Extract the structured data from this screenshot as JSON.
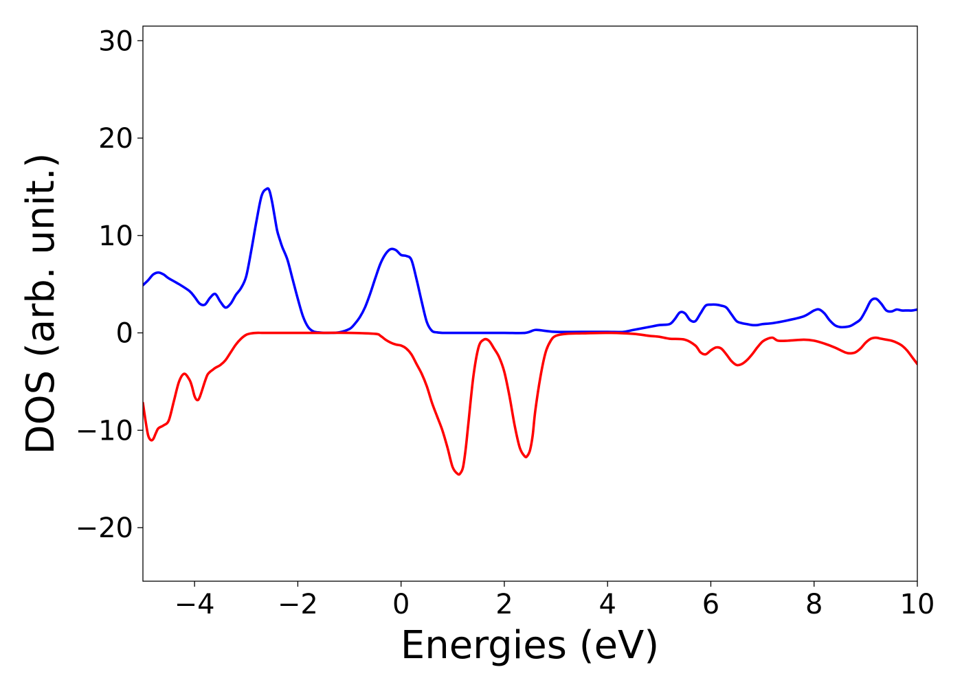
{
  "chart_data": {
    "type": "line",
    "title": "",
    "xlabel": "Energies (eV)",
    "ylabel": "DOS (arb. unit.)",
    "xlim": [
      -5,
      10
    ],
    "ylim": [
      -25.5,
      31.5
    ],
    "x_ticks": [
      -4,
      -2,
      0,
      2,
      4,
      6,
      8,
      10
    ],
    "x_tick_labels": [
      "−4",
      "−2",
      "0",
      "2",
      "4",
      "6",
      "8",
      "10"
    ],
    "y_ticks": [
      -20,
      -10,
      0,
      10,
      20,
      30
    ],
    "y_tick_labels": [
      "−20",
      "−10",
      "0",
      "10",
      "20",
      "30"
    ],
    "grid": false,
    "legend": "none",
    "series": [
      {
        "color": "#0000ff",
        "x": [
          -5.0,
          -4.9,
          -4.8,
          -4.7,
          -4.6,
          -4.5,
          -4.3,
          -4.1,
          -4.0,
          -3.9,
          -3.8,
          -3.7,
          -3.6,
          -3.5,
          -3.4,
          -3.3,
          -3.2,
          -3.1,
          -3.0,
          -2.9,
          -2.8,
          -2.7,
          -2.6,
          -2.55,
          -2.5,
          -2.45,
          -2.4,
          -2.35,
          -2.3,
          -2.2,
          -2.1,
          -2.0,
          -1.9,
          -1.8,
          -1.7,
          -1.6,
          -1.5,
          -1.4,
          -1.2,
          -1.0,
          -0.9,
          -0.8,
          -0.7,
          -0.6,
          -0.5,
          -0.4,
          -0.3,
          -0.2,
          -0.1,
          0.0,
          0.1,
          0.2,
          0.3,
          0.4,
          0.5,
          0.6,
          0.7,
          0.8,
          0.9,
          1.0,
          1.5,
          2.0,
          2.4,
          2.6,
          2.8,
          3.0,
          3.5,
          4.0,
          4.3,
          4.5,
          4.8,
          5.0,
          5.2,
          5.3,
          5.4,
          5.5,
          5.6,
          5.7,
          5.8,
          5.9,
          6.0,
          6.1,
          6.2,
          6.3,
          6.4,
          6.5,
          6.6,
          6.7,
          6.8,
          6.9,
          7.0,
          7.2,
          7.5,
          7.8,
          8.0,
          8.1,
          8.2,
          8.3,
          8.4,
          8.5,
          8.6,
          8.7,
          8.8,
          8.9,
          9.0,
          9.1,
          9.2,
          9.3,
          9.4,
          9.5,
          9.6,
          9.7,
          9.8,
          9.9,
          10.0
        ],
        "y": [
          4.9,
          5.4,
          6.0,
          6.2,
          6.0,
          5.6,
          5.0,
          4.3,
          3.7,
          3.0,
          2.9,
          3.6,
          4.0,
          3.2,
          2.6,
          3.0,
          3.9,
          4.6,
          5.8,
          8.5,
          11.5,
          14.1,
          14.8,
          14.6,
          13.5,
          12.0,
          10.5,
          9.6,
          8.8,
          7.5,
          5.5,
          3.5,
          1.7,
          0.6,
          0.15,
          0.05,
          0.0,
          0.0,
          0.05,
          0.4,
          0.9,
          1.6,
          2.6,
          4.0,
          5.6,
          7.1,
          8.1,
          8.6,
          8.5,
          8.0,
          7.9,
          7.5,
          5.5,
          3.2,
          1.1,
          0.2,
          0.05,
          0.0,
          0.0,
          0.0,
          0.0,
          0.0,
          0.0,
          0.3,
          0.2,
          0.1,
          0.1,
          0.1,
          0.1,
          0.3,
          0.6,
          0.8,
          0.9,
          1.4,
          2.1,
          2.0,
          1.3,
          1.2,
          2.0,
          2.8,
          2.9,
          2.9,
          2.8,
          2.6,
          1.9,
          1.2,
          1.0,
          0.9,
          0.8,
          0.8,
          0.9,
          1.0,
          1.3,
          1.7,
          2.3,
          2.4,
          2.0,
          1.3,
          0.8,
          0.6,
          0.6,
          0.7,
          1.0,
          1.4,
          2.3,
          3.3,
          3.5,
          3.0,
          2.3,
          2.2,
          2.4,
          2.3,
          2.3,
          2.3,
          2.4
        ]
      },
      {
        "color": "#ff0000",
        "x": [
          -5.0,
          -4.95,
          -4.9,
          -4.85,
          -4.8,
          -4.75,
          -4.7,
          -4.6,
          -4.5,
          -4.4,
          -4.3,
          -4.2,
          -4.1,
          -4.05,
          -4.0,
          -3.95,
          -3.9,
          -3.8,
          -3.75,
          -3.7,
          -3.65,
          -3.6,
          -3.5,
          -3.4,
          -3.3,
          -3.2,
          -3.1,
          -3.0,
          -2.9,
          -2.8,
          -2.7,
          -2.6,
          -2.5,
          -2.0,
          -1.5,
          -1.0,
          -0.5,
          -0.4,
          -0.3,
          -0.2,
          -0.1,
          0.0,
          0.1,
          0.2,
          0.3,
          0.4,
          0.5,
          0.6,
          0.7,
          0.8,
          0.9,
          1.0,
          1.1,
          1.15,
          1.2,
          1.25,
          1.3,
          1.4,
          1.5,
          1.6,
          1.7,
          1.8,
          1.9,
          2.0,
          2.1,
          2.2,
          2.3,
          2.4,
          2.45,
          2.5,
          2.55,
          2.6,
          2.7,
          2.8,
          2.9,
          3.0,
          3.2,
          3.5,
          4.0,
          4.5,
          4.8,
          5.0,
          5.2,
          5.5,
          5.7,
          5.8,
          5.9,
          6.0,
          6.1,
          6.2,
          6.3,
          6.4,
          6.5,
          6.6,
          6.7,
          6.8,
          6.9,
          7.0,
          7.1,
          7.2,
          7.3,
          7.5,
          7.8,
          8.0,
          8.2,
          8.4,
          8.6,
          8.7,
          8.8,
          8.9,
          9.0,
          9.1,
          9.2,
          9.3,
          9.4,
          9.5,
          9.6,
          9.7,
          9.8,
          9.9,
          10.0
        ],
        "y": [
          -7.2,
          -9.0,
          -10.5,
          -11.0,
          -10.9,
          -10.3,
          -9.8,
          -9.5,
          -9.0,
          -7.0,
          -5.0,
          -4.2,
          -4.8,
          -5.5,
          -6.5,
          -6.9,
          -6.6,
          -5.0,
          -4.3,
          -4.0,
          -3.8,
          -3.6,
          -3.3,
          -2.8,
          -2.0,
          -1.2,
          -0.6,
          -0.2,
          -0.05,
          0.0,
          0.0,
          0.0,
          0.0,
          0.0,
          0.0,
          0.0,
          -0.1,
          -0.3,
          -0.7,
          -1.0,
          -1.2,
          -1.3,
          -1.6,
          -2.2,
          -3.2,
          -4.2,
          -5.5,
          -7.2,
          -8.6,
          -10.0,
          -11.8,
          -13.8,
          -14.5,
          -14.4,
          -13.8,
          -12.0,
          -9.5,
          -4.5,
          -1.5,
          -0.7,
          -0.8,
          -1.6,
          -2.5,
          -4.0,
          -6.5,
          -9.5,
          -11.8,
          -12.7,
          -12.6,
          -12.0,
          -10.5,
          -8.0,
          -4.5,
          -2.0,
          -0.8,
          -0.3,
          -0.1,
          -0.05,
          0.0,
          -0.1,
          -0.3,
          -0.4,
          -0.6,
          -0.7,
          -1.3,
          -2.0,
          -2.2,
          -1.8,
          -1.5,
          -1.6,
          -2.2,
          -2.9,
          -3.3,
          -3.2,
          -2.8,
          -2.2,
          -1.5,
          -0.9,
          -0.6,
          -0.5,
          -0.8,
          -0.8,
          -0.7,
          -0.8,
          -1.1,
          -1.5,
          -2.0,
          -2.1,
          -2.0,
          -1.6,
          -1.0,
          -0.6,
          -0.5,
          -0.6,
          -0.7,
          -0.8,
          -1.0,
          -1.3,
          -1.8,
          -2.5,
          -3.2
        ]
      }
    ]
  }
}
